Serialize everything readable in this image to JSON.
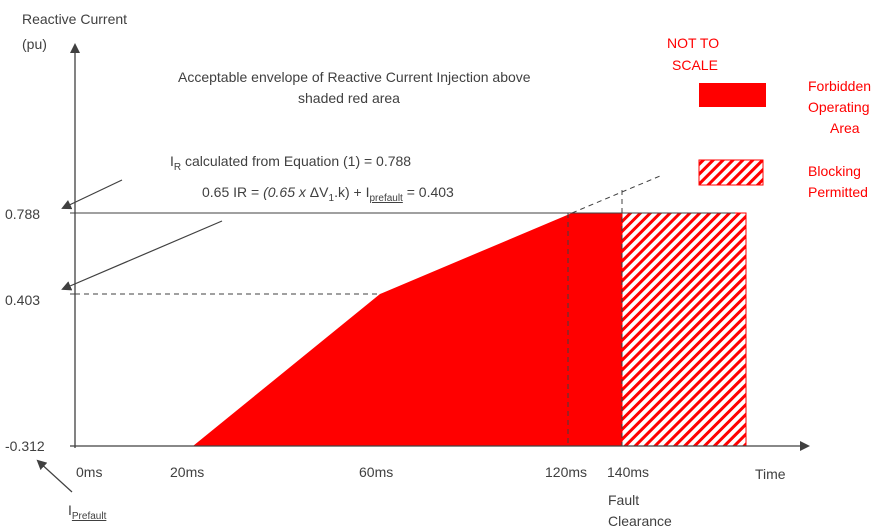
{
  "axis": {
    "y_label_line1": "Reactive Current",
    "y_label_line2": "(pu)",
    "x_label": "Time",
    "y_ticks": [
      "0.788",
      "0.403",
      "-0.312"
    ],
    "x_ticks": [
      "0ms",
      "20ms",
      "60ms",
      "120ms",
      "140ms"
    ],
    "fault_clearance_line1": "Fault",
    "fault_clearance_line2": "Clearance"
  },
  "annotations": {
    "envelope_line1": "Acceptable envelope of Reactive Current Injection above",
    "envelope_line2": "shaded  red area",
    "ir_main": "I",
    "ir_sub": "R",
    "ir_rest": " calculated from Equation (1) = 0.788",
    "eq_prefix": "0.65 IR = ",
    "eq_italic_a": "(0.65 x ",
    "eq_delta": "ΔV",
    "eq_delta_sub": "1",
    "eq_italic_b": ".k)",
    "eq_plus": " + I",
    "eq_prefault_sub": "prefault",
    "eq_value": " = 0.403",
    "iprefault_main": "I",
    "iprefault_sub": "Prefault"
  },
  "legend": {
    "not_to_scale_line1": "NOT TO",
    "not_to_scale_line2": "SCALE",
    "forbidden_line1": "Forbidden",
    "forbidden_line2": "Operating",
    "forbidden_line3": "Area",
    "blocking_line1": "Blocking",
    "blocking_line2": "Permitted"
  },
  "colors": {
    "forbidden": "#ff0000",
    "axis": "#404040",
    "text": "#404040",
    "label_red": "#ff0000"
  }
}
